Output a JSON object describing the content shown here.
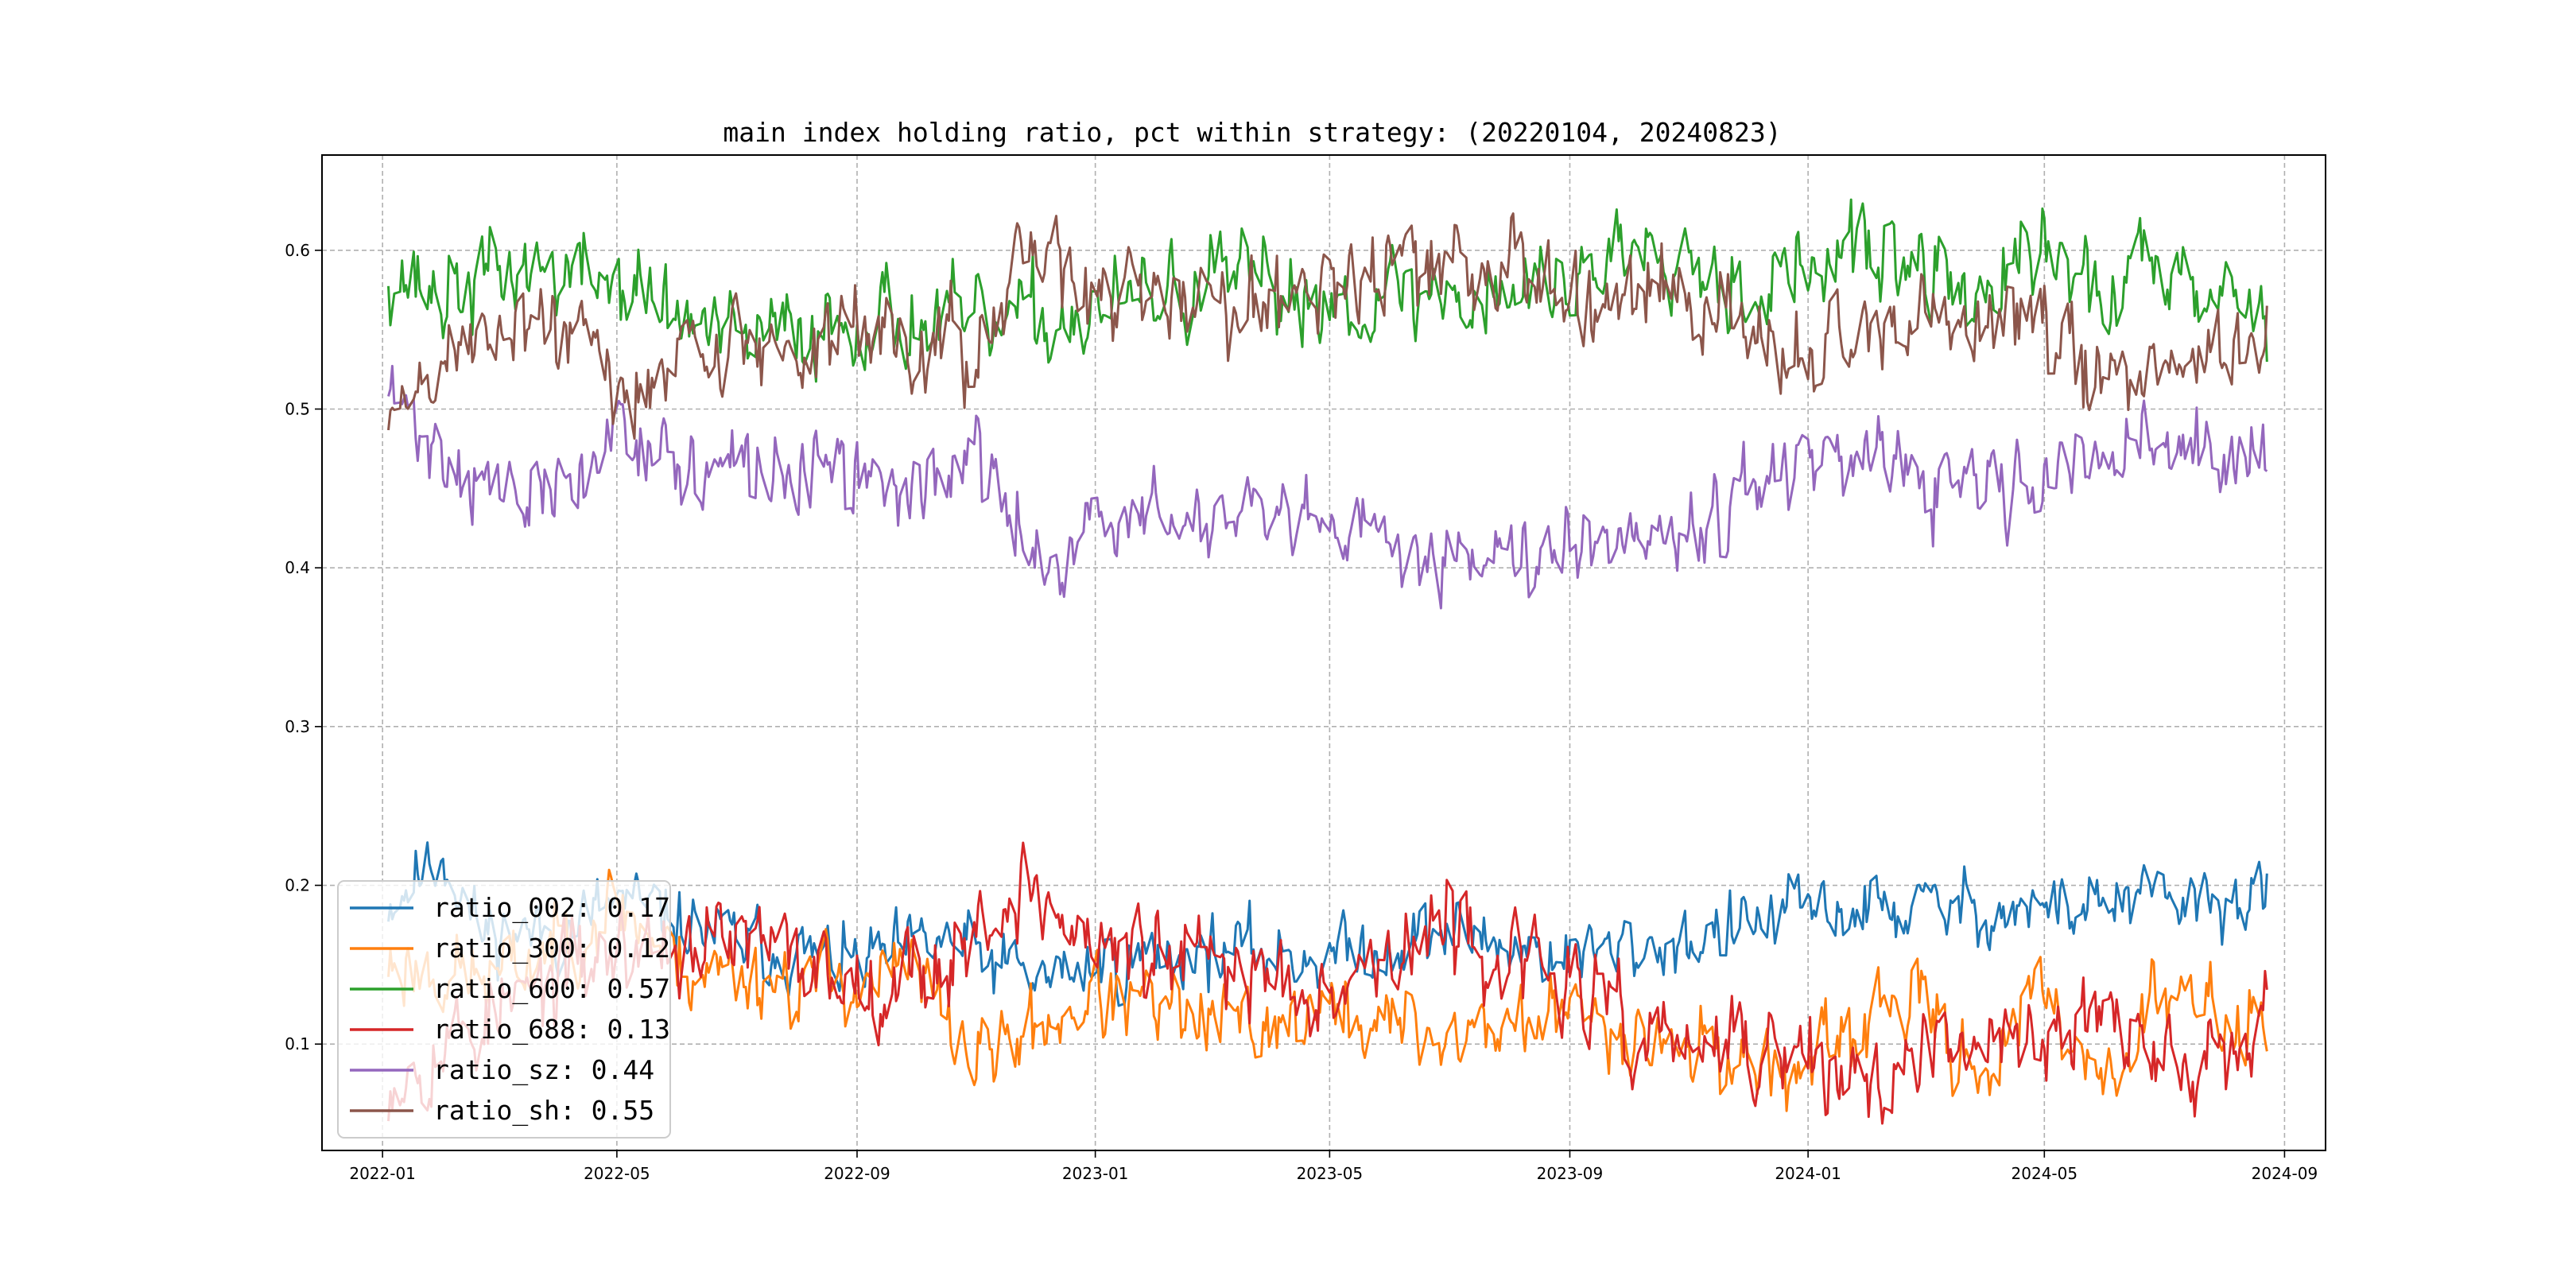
{
  "chart_data": {
    "type": "line",
    "title": "main index holding ratio, pct within strategy: (20220104, 20240823)",
    "xlabel": "",
    "ylabel": "",
    "x_start": "2022-01-04",
    "x_end": "2024-08-23",
    "xlim": [
      "2021-12-01",
      "2024-09-22"
    ],
    "ylim": [
      0.033,
      0.66
    ],
    "x_ticks": [
      "2022-01",
      "2022-05",
      "2022-09",
      "2023-01",
      "2023-05",
      "2023-09",
      "2024-01",
      "2024-05",
      "2024-09"
    ],
    "y_ticks": [
      "0.1",
      "0.2",
      "0.3",
      "0.4",
      "0.5",
      "0.6"
    ],
    "grid": true,
    "legend_position": "lower-left",
    "series": [
      {
        "name": "ratio_002",
        "legend": "ratio_002: 0.17",
        "color": "#1f77b4",
        "seed": 11,
        "noise": 0.012,
        "anchors": [
          [
            "2022-01-04",
            0.19
          ],
          [
            "2022-02-01",
            0.22
          ],
          [
            "2022-02-20",
            0.17
          ],
          [
            "2022-04-01",
            0.17
          ],
          [
            "2022-05-01",
            0.19
          ],
          [
            "2022-07-01",
            0.165
          ],
          [
            "2022-09-01",
            0.15
          ],
          [
            "2022-10-15",
            0.165
          ],
          [
            "2022-12-01",
            0.14
          ],
          [
            "2023-01-01",
            0.15
          ],
          [
            "2023-03-01",
            0.16
          ],
          [
            "2023-05-01",
            0.155
          ],
          [
            "2023-07-01",
            0.17
          ],
          [
            "2023-09-01",
            0.155
          ],
          [
            "2023-11-01",
            0.165
          ],
          [
            "2024-01-01",
            0.185
          ],
          [
            "2024-03-01",
            0.185
          ],
          [
            "2024-05-01",
            0.185
          ],
          [
            "2024-07-01",
            0.19
          ],
          [
            "2024-08-23",
            0.19
          ]
        ]
      },
      {
        "name": "ratio_300",
        "legend": "ratio_300: 0.12",
        "color": "#ff7f0e",
        "seed": 23,
        "noise": 0.014,
        "anchors": [
          [
            "2022-01-04",
            0.15
          ],
          [
            "2022-03-01",
            0.14
          ],
          [
            "2022-05-01",
            0.19
          ],
          [
            "2022-06-01",
            0.15
          ],
          [
            "2022-08-01",
            0.14
          ],
          [
            "2022-10-01",
            0.145
          ],
          [
            "2022-11-01",
            0.09
          ],
          [
            "2023-01-01",
            0.13
          ],
          [
            "2023-03-01",
            0.11
          ],
          [
            "2023-05-01",
            0.12
          ],
          [
            "2023-07-01",
            0.105
          ],
          [
            "2023-09-01",
            0.12
          ],
          [
            "2023-11-01",
            0.1
          ],
          [
            "2024-01-01",
            0.08
          ],
          [
            "2024-02-15",
            0.13
          ],
          [
            "2024-04-01",
            0.085
          ],
          [
            "2024-05-01",
            0.13
          ],
          [
            "2024-06-01",
            0.08
          ],
          [
            "2024-07-01",
            0.13
          ],
          [
            "2024-08-23",
            0.11
          ]
        ]
      },
      {
        "name": "ratio_600",
        "legend": "ratio_600: 0.57",
        "color": "#2ca02c",
        "seed": 37,
        "noise": 0.016,
        "anchors": [
          [
            "2022-01-04",
            0.59
          ],
          [
            "2022-02-01",
            0.57
          ],
          [
            "2022-03-15",
            0.59
          ],
          [
            "2022-05-01",
            0.58
          ],
          [
            "2022-07-01",
            0.54
          ],
          [
            "2022-09-01",
            0.56
          ],
          [
            "2022-11-01",
            0.55
          ],
          [
            "2023-01-01",
            0.56
          ],
          [
            "2023-03-01",
            0.58
          ],
          [
            "2023-05-01",
            0.57
          ],
          [
            "2023-07-01",
            0.57
          ],
          [
            "2023-09-01",
            0.58
          ],
          [
            "2023-10-15",
            0.615
          ],
          [
            "2023-12-01",
            0.575
          ],
          [
            "2024-02-01",
            0.6
          ],
          [
            "2024-04-01",
            0.57
          ],
          [
            "2024-05-01",
            0.6
          ],
          [
            "2024-06-01",
            0.57
          ],
          [
            "2024-07-01",
            0.6
          ],
          [
            "2024-08-23",
            0.56
          ]
        ]
      },
      {
        "name": "ratio_688",
        "legend": "ratio_688: 0.13",
        "color": "#d62728",
        "seed": 53,
        "noise": 0.016,
        "anchors": [
          [
            "2022-01-04",
            0.08
          ],
          [
            "2022-03-01",
            0.12
          ],
          [
            "2022-05-01",
            0.16
          ],
          [
            "2022-07-01",
            0.165
          ],
          [
            "2022-09-01",
            0.14
          ],
          [
            "2022-10-15",
            0.15
          ],
          [
            "2022-11-25",
            0.2
          ],
          [
            "2023-01-01",
            0.16
          ],
          [
            "2023-03-01",
            0.15
          ],
          [
            "2023-05-01",
            0.14
          ],
          [
            "2023-07-01",
            0.17
          ],
          [
            "2023-09-01",
            0.14
          ],
          [
            "2023-10-01",
            0.105
          ],
          [
            "2024-01-01",
            0.09
          ],
          [
            "2024-02-01",
            0.075
          ],
          [
            "2024-04-01",
            0.1
          ],
          [
            "2024-06-01",
            0.12
          ],
          [
            "2024-07-01",
            0.08
          ],
          [
            "2024-08-23",
            0.12
          ]
        ]
      },
      {
        "name": "ratio_sz",
        "legend": "ratio_sz: 0.44",
        "color": "#9467bd",
        "seed": 71,
        "noise": 0.014,
        "anchors": [
          [
            "2022-01-04",
            0.51
          ],
          [
            "2022-02-01",
            0.47
          ],
          [
            "2022-03-15",
            0.44
          ],
          [
            "2022-04-20",
            0.46
          ],
          [
            "2022-05-01",
            0.5
          ],
          [
            "2022-06-01",
            0.46
          ],
          [
            "2022-08-01",
            0.46
          ],
          [
            "2022-10-01",
            0.45
          ],
          [
            "2022-11-01",
            0.47
          ],
          [
            "2022-12-01",
            0.4
          ],
          [
            "2023-01-01",
            0.43
          ],
          [
            "2023-03-01",
            0.43
          ],
          [
            "2023-05-01",
            0.42
          ],
          [
            "2023-07-01",
            0.41
          ],
          [
            "2023-09-01",
            0.42
          ],
          [
            "2023-11-01",
            0.43
          ],
          [
            "2024-01-01",
            0.47
          ],
          [
            "2024-03-01",
            0.45
          ],
          [
            "2024-05-01",
            0.45
          ],
          [
            "2024-06-15",
            0.48
          ],
          [
            "2024-08-23",
            0.46
          ]
        ]
      },
      {
        "name": "ratio_sh",
        "legend": "ratio_sh: 0.55",
        "color": "#8c564b",
        "seed": 89,
        "noise": 0.016,
        "anchors": [
          [
            "2022-01-04",
            0.49
          ],
          [
            "2022-02-01",
            0.53
          ],
          [
            "2022-03-15",
            0.56
          ],
          [
            "2022-04-20",
            0.54
          ],
          [
            "2022-05-01",
            0.5
          ],
          [
            "2022-06-01",
            0.54
          ],
          [
            "2022-08-01",
            0.54
          ],
          [
            "2022-10-01",
            0.55
          ],
          [
            "2022-11-01",
            0.53
          ],
          [
            "2022-12-01",
            0.6
          ],
          [
            "2023-01-01",
            0.57
          ],
          [
            "2023-03-01",
            0.57
          ],
          [
            "2023-05-01",
            0.58
          ],
          [
            "2023-07-01",
            0.59
          ],
          [
            "2023-09-01",
            0.58
          ],
          [
            "2023-11-01",
            0.57
          ],
          [
            "2024-01-01",
            0.53
          ],
          [
            "2024-03-01",
            0.55
          ],
          [
            "2024-05-01",
            0.55
          ],
          [
            "2024-06-15",
            0.52
          ],
          [
            "2024-08-23",
            0.54
          ]
        ]
      }
    ]
  }
}
